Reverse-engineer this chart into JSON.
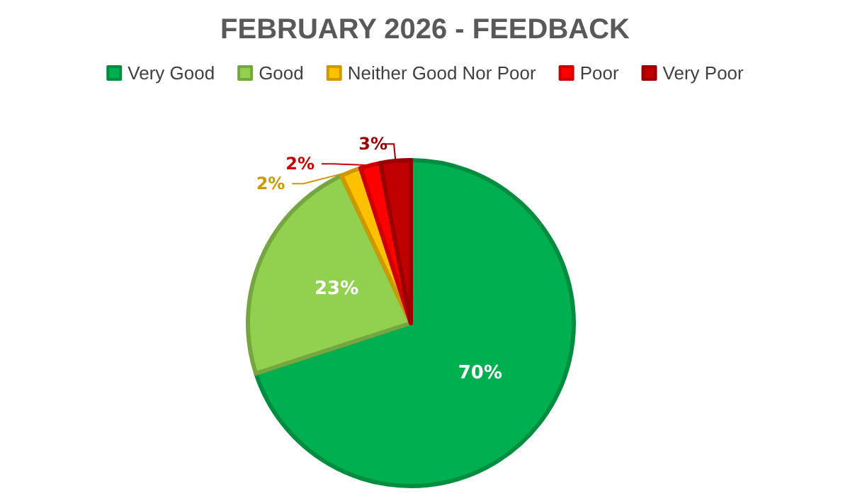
{
  "chart_data": {
    "type": "pie",
    "title": "FEBRUARY 2026 - FEEDBACK",
    "categories": [
      "Very Good",
      "Good",
      "Neither Good Nor Poor",
      "Poor",
      "Very Poor"
    ],
    "values": [
      70,
      23,
      2,
      2,
      3
    ],
    "colors": [
      "#00b050",
      "#92d050",
      "#ffc000",
      "#ff0000",
      "#c00000"
    ],
    "value_labels": [
      "70%",
      "23%",
      "2%",
      "2%",
      "3%"
    ],
    "legend": "top"
  }
}
